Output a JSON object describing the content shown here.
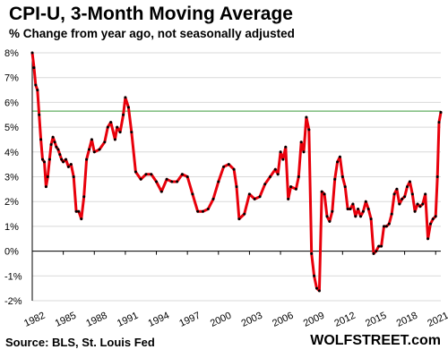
{
  "header": {
    "title": "CPI-U, 3-Month Moving Average",
    "subtitle": "% Change from year ago, not seasonally adjusted"
  },
  "footer": {
    "source": "Source: BLS, St. Louis Fed",
    "brand": "WOLFSTREET.com"
  },
  "chart_data": {
    "type": "line",
    "title": "CPI-U, 3-Month Moving Average",
    "subtitle": "% Change from year ago, not seasonally adjusted",
    "xlabel": "",
    "ylabel": "",
    "xlim": [
      1982,
      2021.5
    ],
    "ylim": [
      -2,
      8
    ],
    "yticks": [
      -2,
      -1,
      0,
      1,
      2,
      3,
      4,
      5,
      6,
      7,
      8
    ],
    "ytick_labels": [
      "-2%",
      "-1%",
      "0%",
      "1%",
      "2%",
      "3%",
      "4%",
      "5%",
      "6%",
      "7%",
      "8%"
    ],
    "xticks": [
      1982,
      1985,
      1988,
      1991,
      1994,
      1997,
      2000,
      2003,
      2006,
      2009,
      2012,
      2015,
      2018,
      2021
    ],
    "xtick_labels": [
      "1982",
      "1985",
      "1988",
      "1991",
      "1994",
      "1997",
      "2000",
      "2003",
      "2006",
      "2009",
      "2012",
      "2015",
      "2018",
      "2021"
    ],
    "grid": "horizontal",
    "reference_line": {
      "y": 5.65,
      "color": "#3a9a3a"
    },
    "line_color": "#e8000b",
    "marker_color": "#000000",
    "series": [
      {
        "x": [
          1982.0,
          1982.17,
          1982.33,
          1982.5,
          1982.67,
          1982.83,
          1983.0,
          1983.17,
          1983.33,
          1983.5,
          1983.67,
          1983.83,
          1984.0,
          1984.17,
          1984.33,
          1984.5,
          1984.67,
          1984.83,
          1985.0,
          1985.25,
          1985.5,
          1985.75,
          1986.0,
          1986.25,
          1986.5,
          1986.75,
          1987.0,
          1987.25,
          1987.5,
          1987.75,
          1988.0,
          1988.5,
          1989.0,
          1989.3,
          1989.6,
          1990.0,
          1990.2,
          1990.5,
          1990.8,
          1991.0,
          1991.3,
          1991.6,
          1992.0,
          1992.5,
          1993.0,
          1993.5,
          1994.0,
          1994.5,
          1995.0,
          1995.5,
          1996.0,
          1996.5,
          1997.0,
          1997.5,
          1998.0,
          1998.5,
          1999.0,
          1999.5,
          2000.0,
          2000.5,
          2001.0,
          2001.5,
          2001.75,
          2002.0,
          2002.5,
          2003.0,
          2003.5,
          2004.0,
          2004.5,
          2005.0,
          2005.5,
          2005.75,
          2006.0,
          2006.25,
          2006.5,
          2006.75,
          2007.0,
          2007.5,
          2007.75,
          2008.0,
          2008.25,
          2008.5,
          2008.75,
          2009.0,
          2009.25,
          2009.5,
          2009.75,
          2010.0,
          2010.25,
          2010.5,
          2010.75,
          2011.0,
          2011.25,
          2011.5,
          2011.75,
          2012.0,
          2012.25,
          2012.5,
          2012.75,
          2013.0,
          2013.25,
          2013.5,
          2013.75,
          2014.0,
          2014.25,
          2014.5,
          2014.75,
          2015.0,
          2015.25,
          2015.5,
          2015.75,
          2016.0,
          2016.25,
          2016.5,
          2016.75,
          2017.0,
          2017.25,
          2017.5,
          2017.75,
          2018.0,
          2018.25,
          2018.5,
          2018.75,
          2019.0,
          2019.25,
          2019.5,
          2019.75,
          2020.0,
          2020.25,
          2020.5,
          2020.75,
          2021.0,
          2021.17,
          2021.33,
          2021.5
        ],
        "values": [
          8.0,
          7.4,
          6.7,
          6.5,
          5.5,
          4.5,
          3.7,
          3.6,
          2.6,
          3.0,
          3.7,
          4.3,
          4.6,
          4.4,
          4.2,
          4.1,
          3.9,
          3.7,
          3.6,
          3.7,
          3.4,
          3.5,
          3.0,
          1.6,
          1.6,
          1.3,
          2.2,
          3.7,
          4.1,
          4.5,
          4.0,
          4.1,
          4.4,
          5.0,
          5.2,
          4.5,
          5.0,
          4.8,
          5.5,
          6.2,
          5.8,
          4.8,
          3.2,
          2.9,
          3.1,
          3.1,
          2.8,
          2.4,
          2.9,
          2.8,
          2.8,
          3.1,
          3.0,
          2.3,
          1.6,
          1.6,
          1.7,
          2.1,
          2.8,
          3.4,
          3.5,
          3.3,
          2.6,
          1.3,
          1.5,
          2.3,
          2.1,
          2.2,
          2.7,
          3.0,
          3.3,
          3.1,
          4.0,
          3.7,
          4.2,
          2.1,
          2.6,
          2.5,
          3.0,
          4.4,
          4.0,
          5.4,
          4.9,
          -0.1,
          -1.0,
          -1.5,
          -1.6,
          2.4,
          2.3,
          1.4,
          1.2,
          1.6,
          2.9,
          3.6,
          3.8,
          3.0,
          2.6,
          1.7,
          1.7,
          1.9,
          1.4,
          1.7,
          1.4,
          1.6,
          2.0,
          1.7,
          1.3,
          -0.1,
          0.0,
          0.2,
          0.2,
          1.0,
          1.0,
          1.1,
          1.5,
          2.3,
          2.5,
          1.9,
          2.1,
          2.2,
          2.6,
          2.8,
          2.3,
          1.6,
          1.9,
          1.8,
          1.9,
          2.3,
          0.5,
          1.1,
          1.3,
          1.4,
          3.0,
          5.2,
          5.6
        ]
      }
    ]
  }
}
